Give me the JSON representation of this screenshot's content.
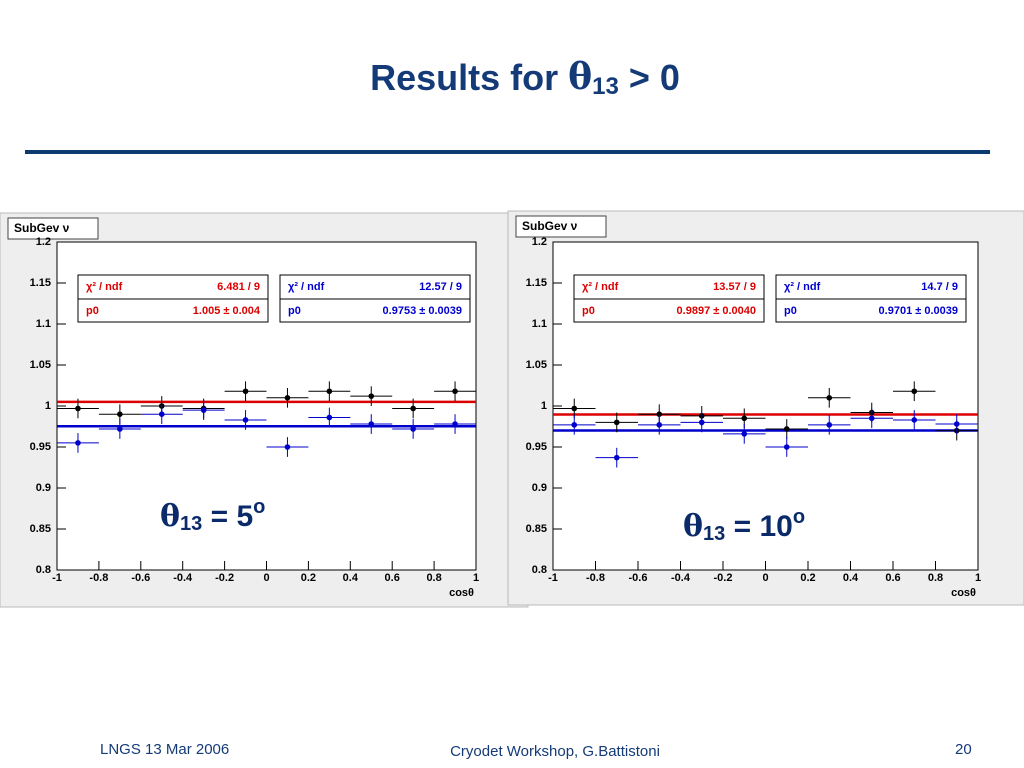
{
  "slide": {
    "title": {
      "text": "Results for ",
      "symbol": "θ",
      "subscript": "13",
      "rest": " > 0"
    },
    "footer": {
      "left": "LNGS 13 Mar 2006",
      "center": "Cryodet Workshop, G.Battistoni",
      "right": "20"
    }
  },
  "chart_data": [
    {
      "type": "scatter",
      "title": "SubGev ν",
      "x_label": "cosθ",
      "xlim": [
        -1,
        1
      ],
      "xticks": [
        -1,
        -0.8,
        -0.6,
        -0.4,
        -0.2,
        0,
        0.2,
        0.4,
        0.6,
        0.8,
        1
      ],
      "ylim": [
        0.8,
        1.2
      ],
      "yticks": [
        0.8,
        0.85,
        0.9,
        0.95,
        1,
        1.05,
        1.1,
        1.15,
        1.2
      ],
      "xerr": 0.1,
      "x": [
        -0.9,
        -0.7,
        -0.5,
        -0.3,
        -0.1,
        0.1,
        0.3,
        0.5,
        0.7,
        0.9
      ],
      "series": [
        {
          "color": "#000000",
          "values": [
            0.997,
            0.99,
            1.0,
            0.997,
            1.018,
            1.01,
            1.018,
            1.012,
            0.997,
            1.018
          ],
          "errors": [
            0.012,
            0.012,
            0.012,
            0.012,
            0.012,
            0.012,
            0.012,
            0.012,
            0.012,
            0.012
          ]
        },
        {
          "color": "#0000cc",
          "values": [
            0.955,
            0.972,
            0.99,
            0.995,
            0.983,
            0.95,
            0.986,
            0.978,
            0.972,
            0.978
          ],
          "errors": [
            0.012,
            0.012,
            0.012,
            0.012,
            0.012,
            0.012,
            0.012,
            0.012,
            0.012,
            0.012
          ]
        }
      ],
      "fits": [
        {
          "color": "#dd0000",
          "chi2_label": "χ² / ndf",
          "chi2": "6.481 / 9",
          "param": "p0",
          "value": 1.005,
          "value_label": "1.005 ± 0.004"
        },
        {
          "color": "#0000cc",
          "chi2_label": "χ² / ndf",
          "chi2": "12.57 / 9",
          "param": "p0",
          "value": 0.9753,
          "value_label": "0.9753 ± 0.0039"
        }
      ],
      "annotation": {
        "symbol": "θ",
        "subscript": "13",
        "text": " = 5",
        "superscript": "o"
      }
    },
    {
      "type": "scatter",
      "title": "SubGev ν",
      "x_label": "cosθ",
      "xlim": [
        -1,
        1
      ],
      "xticks": [
        -1,
        -0.8,
        -0.6,
        -0.4,
        -0.2,
        0,
        0.2,
        0.4,
        0.6,
        0.8,
        1
      ],
      "ylim": [
        0.8,
        1.2
      ],
      "yticks": [
        0.8,
        0.85,
        0.9,
        0.95,
        1,
        1.05,
        1.1,
        1.15,
        1.2
      ],
      "xerr": 0.1,
      "x": [
        -0.9,
        -0.7,
        -0.5,
        -0.3,
        -0.1,
        0.1,
        0.3,
        0.5,
        0.7,
        0.9
      ],
      "series": [
        {
          "color": "#000000",
          "values": [
            0.997,
            0.98,
            0.99,
            0.988,
            0.985,
            0.972,
            1.01,
            0.992,
            1.018,
            0.97
          ],
          "errors": [
            0.012,
            0.012,
            0.012,
            0.012,
            0.012,
            0.012,
            0.012,
            0.012,
            0.012,
            0.012
          ]
        },
        {
          "color": "#0000cc",
          "values": [
            0.977,
            0.937,
            0.977,
            0.98,
            0.966,
            0.95,
            0.977,
            0.985,
            0.983,
            0.978
          ],
          "errors": [
            0.012,
            0.012,
            0.012,
            0.012,
            0.012,
            0.012,
            0.012,
            0.012,
            0.012,
            0.012
          ]
        }
      ],
      "fits": [
        {
          "color": "#dd0000",
          "chi2_label": "χ² / ndf",
          "chi2": "13.57 / 9",
          "param": "p0",
          "value": 0.9897,
          "value_label": "0.9897 ± 0.0040"
        },
        {
          "color": "#0000cc",
          "chi2_label": "χ² / ndf",
          "chi2": "14.7 / 9",
          "param": "p0",
          "value": 0.9701,
          "value_label": "0.9701 ± 0.0039"
        }
      ],
      "annotation": {
        "symbol": "θ",
        "subscript": "13",
        "text": " = 10",
        "superscript": "o"
      }
    }
  ]
}
